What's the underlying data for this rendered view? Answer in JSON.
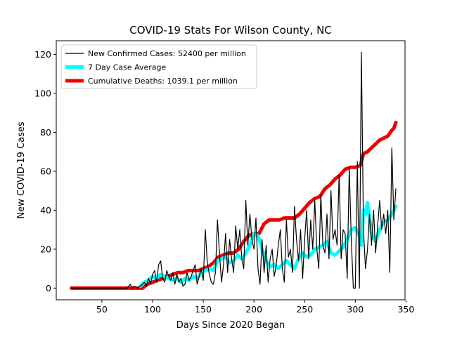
{
  "chart_data": {
    "type": "line",
    "title": "COVID-19 Stats For Wilson County, NC",
    "xlabel": "Days Since 2020 Began",
    "ylabel": "New COVID-19 Cases",
    "xlim": [
      5,
      349
    ],
    "ylim": [
      -6,
      127
    ],
    "xticks": [
      50,
      100,
      150,
      200,
      250,
      300,
      350
    ],
    "yticks": [
      0,
      20,
      40,
      60,
      80,
      100,
      120
    ],
    "grid": false,
    "legend_position": "top-left",
    "series": [
      {
        "name": "New Confirmed Cases: 52400 per million",
        "color": "#000000",
        "style": "thin",
        "x": [
          20,
          30,
          40,
          50,
          60,
          70,
          75,
          78,
          80,
          82,
          85,
          88,
          90,
          92,
          94,
          96,
          98,
          100,
          102,
          104,
          106,
          108,
          110,
          112,
          114,
          116,
          118,
          120,
          122,
          124,
          126,
          128,
          130,
          132,
          134,
          136,
          138,
          140,
          142,
          144,
          146,
          148,
          150,
          152,
          154,
          156,
          158,
          160,
          162,
          164,
          166,
          168,
          170,
          172,
          174,
          176,
          178,
          180,
          182,
          184,
          186,
          188,
          190,
          192,
          194,
          196,
          198,
          200,
          202,
          204,
          206,
          208,
          210,
          212,
          214,
          216,
          218,
          220,
          222,
          224,
          226,
          228,
          230,
          232,
          234,
          236,
          238,
          240,
          242,
          244,
          246,
          248,
          250,
          252,
          254,
          256,
          258,
          260,
          262,
          264,
          266,
          268,
          270,
          272,
          274,
          276,
          278,
          280,
          282,
          284,
          286,
          288,
          290,
          292,
          294,
          296,
          298,
          300,
          302,
          304,
          306,
          308,
          310,
          312,
          314,
          316,
          318,
          320,
          322,
          324,
          326,
          328,
          330,
          332,
          334,
          336,
          338,
          340
        ],
        "values": [
          0,
          0,
          0,
          0,
          0,
          0,
          0,
          2,
          0,
          1,
          0,
          1,
          2,
          3,
          1,
          5,
          2,
          7,
          9,
          3,
          12,
          14,
          5,
          3,
          9,
          6,
          4,
          8,
          2,
          7,
          3,
          5,
          1,
          2,
          8,
          4,
          6,
          9,
          12,
          2,
          6,
          10,
          4,
          30,
          13,
          7,
          3,
          2,
          8,
          35,
          18,
          3,
          12,
          28,
          8,
          25,
          15,
          8,
          32,
          20,
          30,
          15,
          10,
          45,
          22,
          38,
          25,
          20,
          36,
          10,
          2,
          25,
          8,
          22,
          3,
          15,
          20,
          6,
          12,
          22,
          30,
          10,
          3,
          35,
          16,
          20,
          8,
          42,
          25,
          14,
          30,
          5,
          25,
          40,
          15,
          35,
          20,
          45,
          20,
          10,
          48,
          22,
          18,
          38,
          15,
          50,
          25,
          30,
          22,
          58,
          15,
          30,
          28,
          5,
          62,
          25,
          0,
          0,
          65,
          0,
          121,
          30,
          10,
          20,
          38,
          22,
          40,
          18,
          32,
          45,
          30,
          38,
          28,
          40,
          8,
          72,
          35,
          51
        ]
      },
      {
        "name": "7 Day Case Average",
        "color": "#00ffff",
        "style": "thick",
        "x": [
          88,
          92,
          96,
          100,
          104,
          108,
          112,
          116,
          120,
          124,
          128,
          132,
          136,
          140,
          144,
          148,
          152,
          156,
          160,
          164,
          168,
          172,
          176,
          180,
          184,
          188,
          192,
          196,
          200,
          204,
          208,
          212,
          216,
          220,
          224,
          228,
          232,
          236,
          240,
          244,
          248,
          252,
          256,
          260,
          264,
          268,
          272,
          276,
          280,
          284,
          288,
          292,
          296,
          300,
          304,
          306,
          308,
          310,
          312,
          316,
          320,
          324,
          328,
          332,
          336,
          340
        ],
        "values": [
          1,
          3,
          4,
          6,
          5,
          7,
          6,
          5,
          4,
          5,
          3,
          5,
          4,
          6,
          5,
          8,
          9,
          10,
          9,
          14,
          15,
          16,
          13,
          14,
          17,
          15,
          18,
          22,
          28,
          27,
          20,
          14,
          11,
          12,
          10,
          12,
          14,
          12,
          10,
          15,
          18,
          16,
          17,
          20,
          21,
          22,
          24,
          18,
          17,
          19,
          21,
          25,
          30,
          31,
          27,
          22,
          40,
          38,
          44,
          28,
          24,
          30,
          34,
          35,
          38,
          42
        ]
      },
      {
        "name": "Cumulative Deaths: 1039.1 per million",
        "color": "#ee0000",
        "style": "thick",
        "x": [
          20,
          60,
          90,
          95,
          100,
          105,
          110,
          115,
          120,
          125,
          130,
          135,
          140,
          145,
          150,
          155,
          160,
          165,
          170,
          175,
          180,
          185,
          190,
          195,
          200,
          205,
          210,
          215,
          220,
          225,
          230,
          235,
          240,
          245,
          250,
          255,
          260,
          265,
          270,
          275,
          280,
          285,
          290,
          295,
          300,
          305,
          308,
          312,
          316,
          320,
          324,
          328,
          332,
          336,
          338,
          340
        ],
        "values": [
          0,
          0,
          0,
          2,
          3,
          4,
          5,
          6,
          7,
          8,
          8,
          9,
          9,
          9,
          10,
          11,
          13,
          16,
          17,
          18,
          18,
          20,
          24,
          27,
          28,
          28,
          33,
          35,
          35,
          35,
          36,
          36,
          36,
          38,
          41,
          44,
          46,
          47,
          51,
          53,
          56,
          58,
          61,
          62,
          62,
          63,
          69,
          70,
          72,
          74,
          76,
          77,
          78,
          81,
          82,
          85
        ]
      }
    ]
  }
}
